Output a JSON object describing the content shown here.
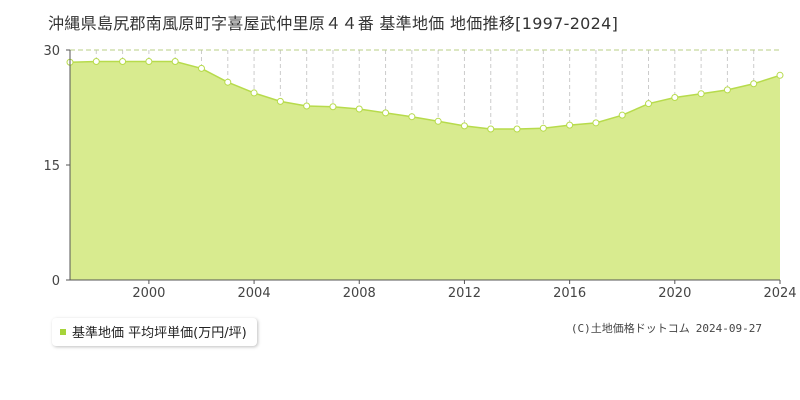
{
  "title": "沖縄県島尻郡南風原町字喜屋武仲里原４４番 基準地価 地価推移[1997-2024]",
  "copyright": {
    "owner": "(C)土地価格ドットコム",
    "date": "2024-09-27"
  },
  "colors": {
    "fill": "#d8eb8f",
    "line": "#b7db4c",
    "grid": "#cccccc",
    "hgrid": "#b8cf86",
    "marker_fill": "#ffffff",
    "legend_marker": "#a6d43a"
  },
  "chart_data": {
    "type": "area",
    "title": "沖縄県島尻郡南風原町字喜屋武仲里原４４番 基準地価 地価推移[1997-2024]",
    "xlabel": "",
    "ylabel": "",
    "xlim": [
      1997,
      2024
    ],
    "ylim": [
      0,
      30
    ],
    "y_ticks": [
      0,
      15,
      30
    ],
    "x_ticks": [
      2000,
      2004,
      2008,
      2012,
      2016,
      2020,
      2024
    ],
    "grid": true,
    "legend_position": "bottom-left",
    "series": [
      {
        "name": "基準地価 平均坪単価(万円/坪)",
        "x": [
          1997,
          1998,
          1999,
          2000,
          2001,
          2002,
          2003,
          2004,
          2005,
          2006,
          2007,
          2008,
          2009,
          2010,
          2011,
          2012,
          2013,
          2014,
          2015,
          2016,
          2017,
          2018,
          2019,
          2020,
          2021,
          2022,
          2023,
          2024
        ],
        "values": [
          28.4,
          28.5,
          28.5,
          28.5,
          28.5,
          27.6,
          25.8,
          24.4,
          23.3,
          22.7,
          22.6,
          22.3,
          21.8,
          21.3,
          20.7,
          20.1,
          19.7,
          19.7,
          19.8,
          20.2,
          20.5,
          21.5,
          23.0,
          23.8,
          24.3,
          24.8,
          25.6,
          26.7
        ]
      }
    ]
  }
}
